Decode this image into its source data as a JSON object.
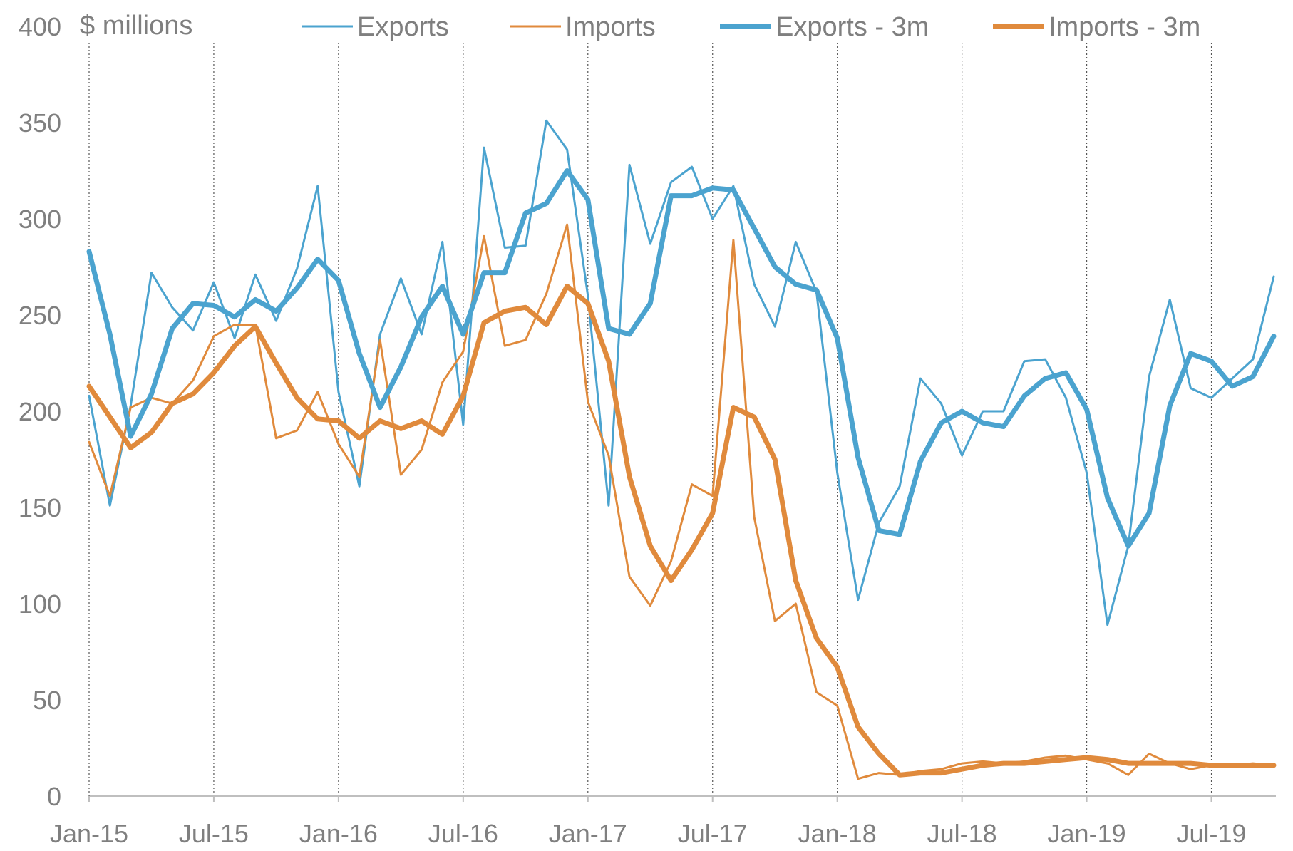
{
  "chart_data": {
    "type": "line",
    "title": "",
    "ylabel": "$ millions",
    "xlabel": "",
    "ylim": [
      0,
      400
    ],
    "yticks": [
      0,
      50,
      100,
      150,
      200,
      250,
      300,
      350,
      400
    ],
    "x": [
      "Jan-15",
      "Feb-15",
      "Mar-15",
      "Apr-15",
      "May-15",
      "Jun-15",
      "Jul-15",
      "Aug-15",
      "Sep-15",
      "Oct-15",
      "Nov-15",
      "Dec-15",
      "Jan-16",
      "Feb-16",
      "Mar-16",
      "Apr-16",
      "May-16",
      "Jun-16",
      "Jul-16",
      "Aug-16",
      "Sep-16",
      "Oct-16",
      "Nov-16",
      "Dec-16",
      "Jan-17",
      "Feb-17",
      "Mar-17",
      "Apr-17",
      "May-17",
      "Jun-17",
      "Jul-17",
      "Aug-17",
      "Sep-17",
      "Oct-17",
      "Nov-17",
      "Dec-17",
      "Jan-18",
      "Feb-18",
      "Mar-18",
      "Apr-18",
      "May-18",
      "Jun-18",
      "Jul-18",
      "Aug-18",
      "Sep-18",
      "Oct-18",
      "Nov-18",
      "Dec-18",
      "Jan-19",
      "Feb-19",
      "Mar-19",
      "Apr-19",
      "May-19",
      "Jun-19",
      "Jul-19",
      "Aug-19",
      "Sep-19",
      "Oct-19"
    ],
    "xtick_labels": [
      "Jan-15",
      "Jul-15",
      "Jan-16",
      "Jul-16",
      "Jan-17",
      "Jul-17",
      "Jan-18",
      "Jul-18",
      "Jan-19",
      "Jul-19"
    ],
    "xtick_indices": [
      0,
      6,
      12,
      18,
      24,
      30,
      36,
      42,
      48,
      54
    ],
    "series": [
      {
        "name": "Exports",
        "color": "#4ba3cf",
        "width": 3,
        "values": [
          208,
          151,
          203,
          272,
          254,
          242,
          267,
          238,
          271,
          247,
          274,
          317,
          210,
          161,
          240,
          269,
          240,
          288,
          193,
          337,
          285,
          286,
          351,
          336,
          260,
          151,
          328,
          287,
          319,
          327,
          300,
          317,
          266,
          244,
          288,
          262,
          168,
          102,
          142,
          161,
          217,
          204,
          177,
          200,
          200,
          226,
          227,
          207,
          168,
          89,
          130,
          218,
          258,
          212,
          207,
          217,
          227,
          270
        ]
      },
      {
        "name": "Imports",
        "color": "#e08a3c",
        "width": 3,
        "values": [
          184,
          156,
          202,
          207,
          204,
          216,
          239,
          245,
          245,
          186,
          190,
          210,
          183,
          166,
          237,
          167,
          180,
          215,
          231,
          291,
          234,
          237,
          261,
          297,
          205,
          177,
          114,
          99,
          122,
          162,
          156,
          289,
          145,
          91,
          100,
          54,
          47,
          9,
          12,
          11,
          13,
          14,
          17,
          18,
          17,
          18,
          20,
          21,
          19,
          17,
          11,
          22,
          17,
          14,
          16,
          16,
          17,
          16
        ]
      },
      {
        "name": "Exports - 3m",
        "color": "#4ba3cf",
        "width": 7,
        "values": [
          283,
          240,
          187,
          209,
          243,
          256,
          255,
          249,
          258,
          252,
          264,
          279,
          268,
          230,
          202,
          223,
          249,
          265,
          240,
          272,
          272,
          303,
          308,
          325,
          310,
          243,
          240,
          256,
          312,
          312,
          316,
          315,
          295,
          275,
          266,
          263,
          238,
          176,
          138,
          136,
          174,
          194,
          200,
          194,
          192,
          208,
          217,
          220,
          201,
          155,
          130,
          147,
          203,
          230,
          226,
          213,
          218,
          239
        ]
      },
      {
        "name": "Imports - 3m",
        "color": "#e08a3c",
        "width": 7,
        "values": [
          213,
          197,
          181,
          189,
          204,
          209,
          220,
          234,
          244,
          225,
          207,
          196,
          195,
          186,
          195,
          191,
          195,
          188,
          208,
          246,
          252,
          254,
          245,
          265,
          256,
          226,
          166,
          130,
          112,
          128,
          147,
          202,
          197,
          175,
          112,
          82,
          67,
          36,
          22,
          11,
          12,
          12,
          14,
          16,
          17,
          17,
          18,
          19,
          20,
          19,
          17,
          17,
          17,
          17,
          16,
          16,
          16,
          16
        ]
      }
    ],
    "legend": {
      "position": "top"
    }
  }
}
